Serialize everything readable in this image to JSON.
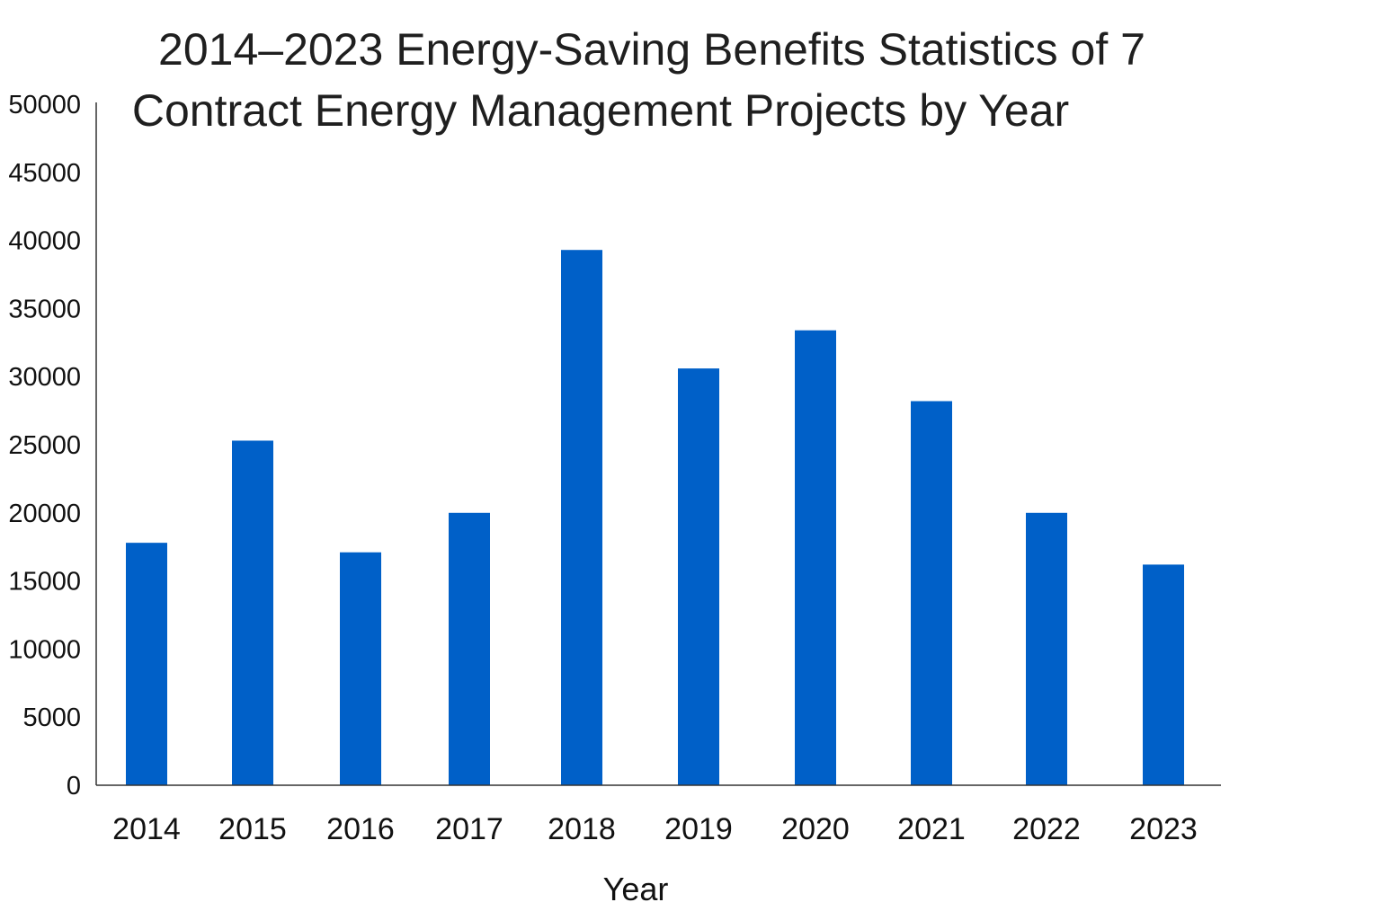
{
  "chart_data": {
    "type": "bar",
    "title_lines": [
      "2014–2023 Energy-Saving Benefits Statistics of 7",
      "Contract Energy Management Projects by Year"
    ],
    "title": "2014–2023 Energy-Saving Benefits Statistics of 7 Contract Energy Management Projects by Year",
    "xlabel": "Year",
    "ylabel": "",
    "categories": [
      "2014",
      "2015",
      "2016",
      "2017",
      "2018",
      "2019",
      "2020",
      "2021",
      "2022",
      "2023"
    ],
    "values": [
      17800,
      25300,
      17100,
      20000,
      39300,
      30600,
      33400,
      28200,
      20000,
      16200
    ],
    "ylim": [
      0,
      50000
    ],
    "yticks": [
      "0",
      "5000",
      "10000",
      "15000",
      "20000",
      "25000",
      "30000",
      "35000",
      "40000",
      "45000",
      "50000"
    ],
    "bar_color": "#0060c8",
    "grid": false,
    "legend": "none"
  }
}
